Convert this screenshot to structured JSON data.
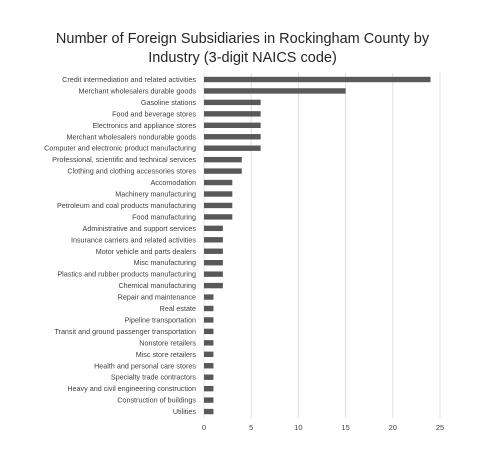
{
  "chart_data": {
    "type": "bar",
    "orientation": "horizontal",
    "title_line1": "Number of Foreign Subsidiaries in Rockingham County by",
    "title_line2": "Industry (3-digit NAICS code)",
    "categories": [
      "Credit intermediation and related activities",
      "Merchant wholesalers durable goods",
      "Gasoline stations",
      "Food and beverage stores",
      "Electronics and appliance stores",
      "Merchant wholesalers nondurable goods",
      "Computer and electronic product manufacturing",
      "Professional, scientific and technical services",
      "Clothing and clothing accessories  stores",
      "Accomodation",
      "Machinery manufacturing",
      "Petroleum and coal products manufacturing",
      "Food manufacturing",
      "Administrative and support services",
      "Insurance carriers and related activities",
      "Motor vehicle and parts dealers",
      "Misc manufacturing",
      "Plastics and rubber products manufacturing",
      "Chemical manufacturing",
      "Repair and maintenance",
      "Real estate",
      "Pipeline transportation",
      "Transit and ground passenger transportation",
      "Nonstore retailers",
      "Misc store retailers",
      "Health and personal care stores",
      "Specialty trade contractors",
      "Heavy and civil engineering construction",
      "Construction of buildings",
      "Utilities"
    ],
    "values": [
      24,
      15,
      6,
      6,
      6,
      6,
      6,
      4,
      4,
      3,
      3,
      3,
      3,
      2,
      2,
      2,
      2,
      2,
      2,
      1,
      1,
      1,
      1,
      1,
      1,
      1,
      1,
      1,
      1,
      1
    ],
    "xlim": [
      0,
      25
    ],
    "xticks": [
      0,
      5,
      10,
      15,
      20,
      25
    ],
    "xtick_labels": [
      "0",
      "5",
      "10",
      "15",
      "20",
      "25"
    ],
    "grid": "vertical",
    "legend": "none",
    "colors": {
      "bar": "#595959",
      "grid": "#d9d9d9",
      "text": "#404040",
      "title": "#262626"
    }
  }
}
